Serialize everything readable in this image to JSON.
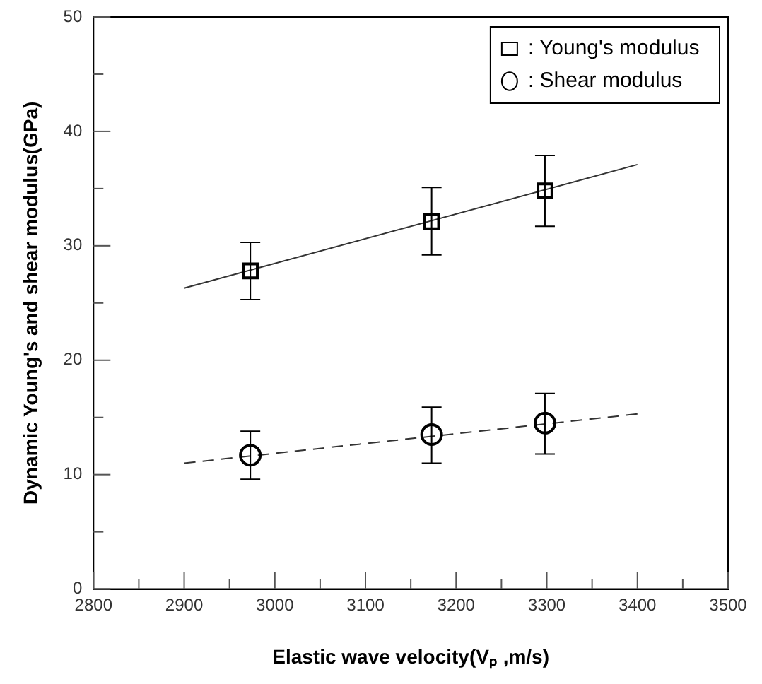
{
  "chart_data": {
    "type": "scatter",
    "xlabel": "Elastic wave velocity(Vₚ ,m/s)",
    "ylabel": "Dynamic Young's and shear modulus(GPa)",
    "xlim": [
      2800,
      3500
    ],
    "xticks": [
      2800,
      {
        "value": 2850,
        "label": null
      },
      2900,
      {
        "value": 2950,
        "label": null
      },
      3000,
      {
        "value": 3050,
        "label": null
      },
      3100,
      {
        "value": 3150,
        "label": null
      },
      3200,
      {
        "value": 3250,
        "label": null
      },
      3300,
      {
        "value": 3350,
        "label": null
      },
      3400,
      {
        "value": 3450,
        "label": null
      },
      3500
    ],
    "ylim": [
      0,
      50
    ],
    "yticks": [
      0,
      {
        "value": 5,
        "label": null
      },
      10,
      {
        "value": 15,
        "label": null
      },
      20,
      {
        "value": 25,
        "label": null
      },
      30,
      {
        "value": 35,
        "label": null
      },
      40,
      {
        "value": 45,
        "label": null
      },
      50
    ],
    "grid": false,
    "legend": "top right",
    "series": [
      {
        "name": ": Young's modulus",
        "type": "scatter",
        "marker": "square",
        "color": "#000000",
        "x": [
          2973,
          3173,
          3298
        ],
        "values": [
          27.8,
          32.1,
          34.8
        ],
        "errors": [
          [
            25.3,
            30.3
          ],
          [
            29.2,
            35.1
          ],
          [
            31.7,
            37.9
          ]
        ]
      },
      {
        "name": ": Shear modulus",
        "type": "scatter",
        "marker": "circle",
        "color": "#000000",
        "x": [
          2973,
          3173,
          3298
        ],
        "values": [
          11.7,
          13.5,
          14.5
        ],
        "errors": [
          [
            9.6,
            13.8
          ],
          [
            11.0,
            15.9
          ],
          [
            11.8,
            17.1
          ]
        ]
      },
      {
        "type": "line",
        "marker": "none",
        "line_style": "solid",
        "color": "#333333",
        "x": [
          2900,
          3400
        ],
        "values": [
          26.3,
          37.1
        ]
      },
      {
        "type": "line",
        "marker": "none",
        "line_style": "dashed",
        "color": "#333333",
        "x": [
          2900,
          3400
        ],
        "values": [
          11.0,
          15.3
        ]
      }
    ]
  }
}
